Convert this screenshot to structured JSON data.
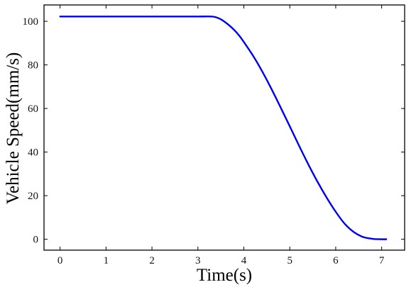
{
  "chart_data": {
    "type": "line",
    "xlabel": "Time(s)",
    "ylabel": "Vehicle Speed(mm/s)",
    "xlim": [
      -0.35,
      7.5
    ],
    "ylim": [
      -5,
      107.5
    ],
    "x_ticks": [
      0,
      1,
      2,
      3,
      4,
      5,
      6,
      7
    ],
    "y_ticks": [
      0,
      20,
      40,
      60,
      80,
      100
    ],
    "grid": false,
    "series": [
      {
        "color": "#0000ee",
        "x": [
          0,
          0.5,
          1,
          1.5,
          2,
          2.5,
          3,
          3.3,
          3.4,
          3.5,
          3.6,
          3.7,
          3.8,
          3.9,
          4.0,
          4.2,
          4.4,
          4.6,
          4.8,
          5.0,
          5.2,
          5.4,
          5.6,
          5.8,
          6.0,
          6.2,
          6.4,
          6.6,
          6.8,
          6.9,
          7.0,
          7.1
        ],
        "y": [
          102.2,
          102.2,
          102.2,
          102.2,
          102.2,
          102.2,
          102.2,
          102.2,
          101.8,
          100.9,
          99.5,
          97.8,
          95.8,
          93.4,
          90.5,
          84.2,
          77.0,
          69.0,
          60.5,
          51.8,
          43.0,
          34.5,
          26.5,
          19.2,
          12.6,
          7.0,
          3.2,
          1.0,
          0.2,
          0.05,
          0.0,
          0.0
        ]
      }
    ]
  }
}
